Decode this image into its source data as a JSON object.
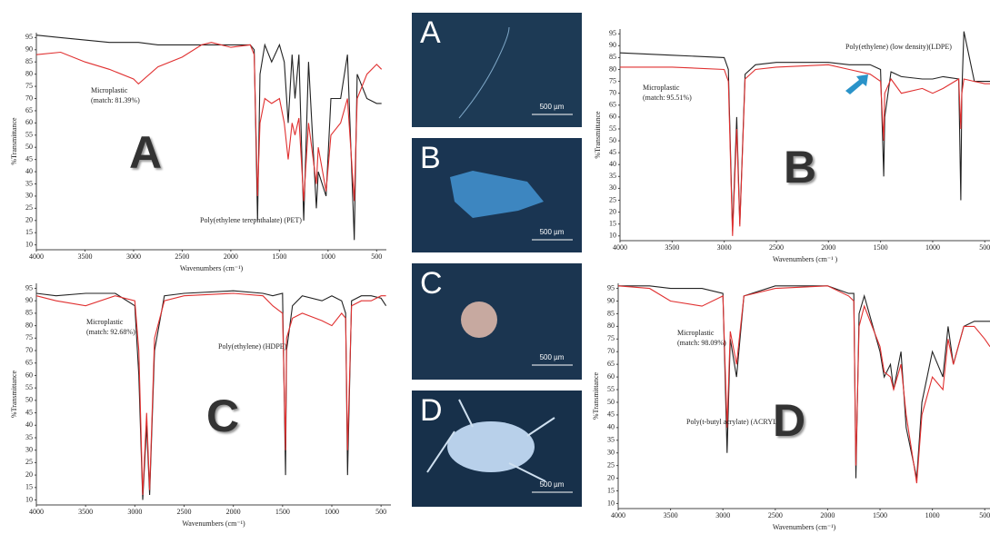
{
  "chart_data": [
    {
      "type": "line",
      "xlabel": "Wavenumbers (cm⁻¹)",
      "ylabel": "%Transmittance",
      "x": [
        4000,
        3750,
        3500,
        3250,
        3000,
        2950,
        2750,
        2500,
        2300,
        2200,
        2000,
        1800,
        1760,
        1725,
        1700,
        1650,
        1580,
        1500,
        1450,
        1410,
        1370,
        1340,
        1300,
        1250,
        1200,
        1120,
        1100,
        1020,
        970,
        870,
        800,
        730,
        700,
        600,
        500,
        450
      ],
      "xlim": [
        4000,
        400
      ],
      "xticks": [
        4000,
        3500,
        3000,
        2500,
        2000,
        1500,
        1000,
        500
      ],
      "ylim": [
        8,
        97
      ],
      "yticks": [
        10,
        15,
        20,
        25,
        30,
        35,
        40,
        45,
        50,
        55,
        60,
        65,
        70,
        75,
        80,
        85,
        90,
        95
      ],
      "series": [
        {
          "name": "Poly(ethylene terephthalate) (PET)",
          "color": "#222222",
          "values": [
            96,
            95,
            94,
            93,
            93,
            93,
            92,
            92,
            92,
            92,
            92,
            92,
            90,
            20,
            80,
            92,
            85,
            92,
            85,
            60,
            88,
            70,
            88,
            20,
            85,
            25,
            40,
            30,
            70,
            70,
            88,
            12,
            80,
            70,
            68,
            68
          ]
        },
        {
          "name": "Microplastic",
          "color": "#e03030",
          "values": [
            88,
            89,
            85,
            82,
            78,
            76,
            83,
            87,
            92,
            93,
            91,
            92,
            88,
            30,
            60,
            70,
            68,
            70,
            60,
            45,
            60,
            55,
            62,
            28,
            60,
            35,
            50,
            32,
            55,
            60,
            70,
            28,
            70,
            80,
            84,
            82
          ]
        }
      ],
      "annotations": {
        "match": "(match: 81.39%)",
        "panel": "A"
      }
    },
    {
      "type": "line",
      "xlabel": "Wavenumbers (cm⁻¹ )",
      "ylabel": "%Transmittance",
      "x": [
        4000,
        3500,
        3000,
        2960,
        2920,
        2880,
        2850,
        2800,
        2700,
        2500,
        2000,
        1800,
        1600,
        1500,
        1470,
        1460,
        1400,
        1300,
        1100,
        1000,
        900,
        750,
        730,
        720,
        700,
        600,
        500,
        450
      ],
      "xlim": [
        4000,
        450
      ],
      "xticks": [
        4000,
        3500,
        3000,
        2500,
        2000,
        1500,
        1000,
        500
      ],
      "ylim": [
        8,
        97
      ],
      "yticks": [
        10,
        15,
        20,
        25,
        30,
        35,
        40,
        45,
        50,
        55,
        60,
        65,
        70,
        75,
        80,
        85,
        90,
        95
      ],
      "series": [
        {
          "name": "Poly(ethylene) (low density)(LDPE)",
          "color": "#222222",
          "values": [
            87,
            86,
            85,
            80,
            12,
            60,
            15,
            78,
            82,
            83,
            83,
            82,
            82,
            80,
            35,
            60,
            79,
            77,
            76,
            76,
            77,
            76,
            25,
            70,
            96,
            75,
            75,
            75
          ]
        },
        {
          "name": "Microplastic",
          "color": "#e03030",
          "values": [
            81,
            81,
            80,
            75,
            10,
            55,
            14,
            76,
            80,
            81,
            82,
            80,
            78,
            75,
            50,
            70,
            76,
            70,
            72,
            70,
            72,
            76,
            55,
            70,
            76,
            75,
            74,
            74
          ]
        }
      ],
      "annotations": {
        "match": "(match: 95.51%)",
        "panel": "B"
      }
    },
    {
      "type": "line",
      "xlabel": "Wavenumbers (cm⁻¹)",
      "ylabel": "%Transmittance",
      "x": [
        4000,
        3800,
        3500,
        3200,
        3000,
        2960,
        2920,
        2880,
        2850,
        2800,
        2700,
        2500,
        2000,
        1700,
        1600,
        1500,
        1470,
        1460,
        1400,
        1300,
        1100,
        1000,
        900,
        860,
        840,
        800,
        700,
        600,
        500,
        450
      ],
      "xlim": [
        4000,
        400
      ],
      "xticks": [
        4000,
        3500,
        3000,
        2500,
        2000,
        1500,
        1000,
        500
      ],
      "ylim": [
        8,
        97
      ],
      "yticks": [
        10,
        15,
        20,
        25,
        30,
        35,
        40,
        45,
        50,
        55,
        60,
        65,
        70,
        75,
        80,
        85,
        90,
        95
      ],
      "series": [
        {
          "name": "Poly(ethylene) (HDPE)",
          "color": "#222222",
          "values": [
            93,
            92,
            93,
            93,
            88,
            60,
            10,
            40,
            12,
            70,
            92,
            93,
            94,
            93,
            92,
            93,
            20,
            70,
            88,
            92,
            90,
            92,
            90,
            85,
            20,
            90,
            92,
            92,
            91,
            88
          ]
        },
        {
          "name": "Microplastic",
          "color": "#e03030",
          "values": [
            92,
            90,
            88,
            92,
            90,
            70,
            12,
            45,
            14,
            75,
            90,
            92,
            93,
            92,
            88,
            85,
            30,
            75,
            83,
            85,
            82,
            80,
            85,
            83,
            30,
            88,
            90,
            90,
            92,
            92
          ]
        }
      ],
      "annotations": {
        "match": "(match: 92.68%)",
        "panel": "C"
      }
    },
    {
      "type": "line",
      "xlabel": "Wavenumbers (cm⁻¹)",
      "ylabel": "%Transmittance",
      "x": [
        4000,
        3700,
        3500,
        3200,
        3000,
        2960,
        2930,
        2870,
        2800,
        2500,
        2000,
        1800,
        1750,
        1730,
        1700,
        1650,
        1500,
        1460,
        1400,
        1370,
        1300,
        1250,
        1150,
        1100,
        1000,
        900,
        850,
        800,
        700,
        600,
        500,
        450
      ],
      "xlim": [
        4000,
        450
      ],
      "xticks": [
        4000,
        3500,
        3000,
        2500,
        2000,
        1500,
        1000,
        500
      ],
      "ylim": [
        8,
        97
      ],
      "yticks": [
        10,
        15,
        20,
        25,
        30,
        35,
        40,
        45,
        50,
        55,
        60,
        65,
        70,
        75,
        80,
        85,
        90,
        95
      ],
      "series": [
        {
          "name": "Poly(t-butyl acrylate) (ACRYL)",
          "color": "#222222",
          "values": [
            96,
            96,
            95,
            95,
            93,
            30,
            75,
            60,
            92,
            96,
            96,
            93,
            93,
            20,
            85,
            92,
            70,
            60,
            65,
            55,
            70,
            40,
            20,
            50,
            70,
            60,
            80,
            65,
            80,
            82,
            82,
            82
          ]
        },
        {
          "name": "Microplastic",
          "color": "#e03030",
          "values": [
            96,
            95,
            90,
            88,
            92,
            40,
            78,
            65,
            92,
            95,
            96,
            92,
            90,
            25,
            80,
            88,
            72,
            62,
            60,
            55,
            65,
            45,
            18,
            45,
            60,
            55,
            75,
            65,
            80,
            80,
            75,
            72
          ]
        }
      ],
      "annotations": {
        "match": "(match: 98.09%)",
        "panel": "D"
      }
    }
  ],
  "images": [
    {
      "label": "A",
      "scale": "500 µm"
    },
    {
      "label": "B",
      "scale": "500 µm"
    },
    {
      "label": "C",
      "scale": "500 µm"
    },
    {
      "label": "D",
      "scale": "500 µm"
    }
  ]
}
